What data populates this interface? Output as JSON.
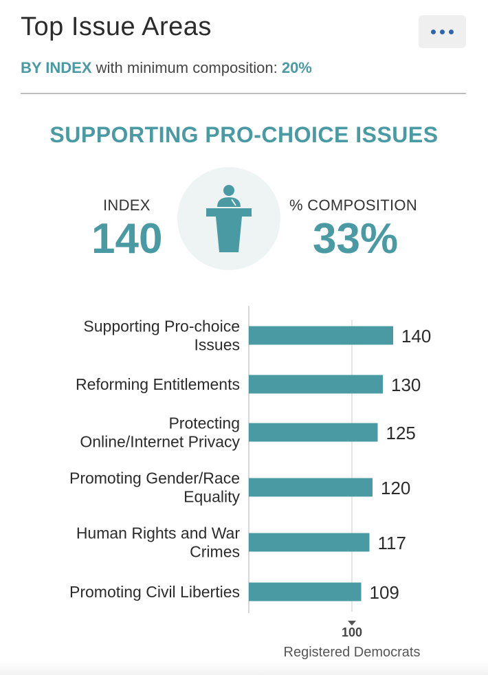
{
  "header": {
    "title": "Top Issue Areas",
    "more_icon": "ellipsis-icon"
  },
  "subtitle": {
    "by_label": "BY INDEX",
    "middle_text": " with minimum composition: ",
    "min_composition": "20%"
  },
  "section": {
    "title": "SUPPORTING PRO-CHOICE ISSUES",
    "index_label": "INDEX",
    "index_value": "140",
    "composition_label": "% COMPOSITION",
    "composition_value": "33%",
    "icon": "podium-speaker-icon"
  },
  "colors": {
    "accent": "#4a9aa3",
    "button_blue": "#2e64b0"
  },
  "chart_data": {
    "type": "bar",
    "orientation": "horizontal",
    "categories": [
      [
        "Supporting Pro-choice",
        "Issues"
      ],
      [
        "Reforming Entitlements"
      ],
      [
        "Protecting",
        "Online/Internet Privacy"
      ],
      [
        "Promoting Gender/Race",
        "Equality"
      ],
      [
        "Human Rights and War",
        "Crimes"
      ],
      [
        "Promoting Civil Liberties"
      ]
    ],
    "values": [
      140,
      130,
      125,
      120,
      117,
      109
    ],
    "value_labels": [
      "140",
      "130",
      "125",
      "120",
      "117",
      "109"
    ],
    "reference": {
      "value": 100,
      "label": "100",
      "caption": "Registered Democrats"
    },
    "xlim": [
      0,
      162
    ],
    "bar_color": "#4a9aa3"
  }
}
